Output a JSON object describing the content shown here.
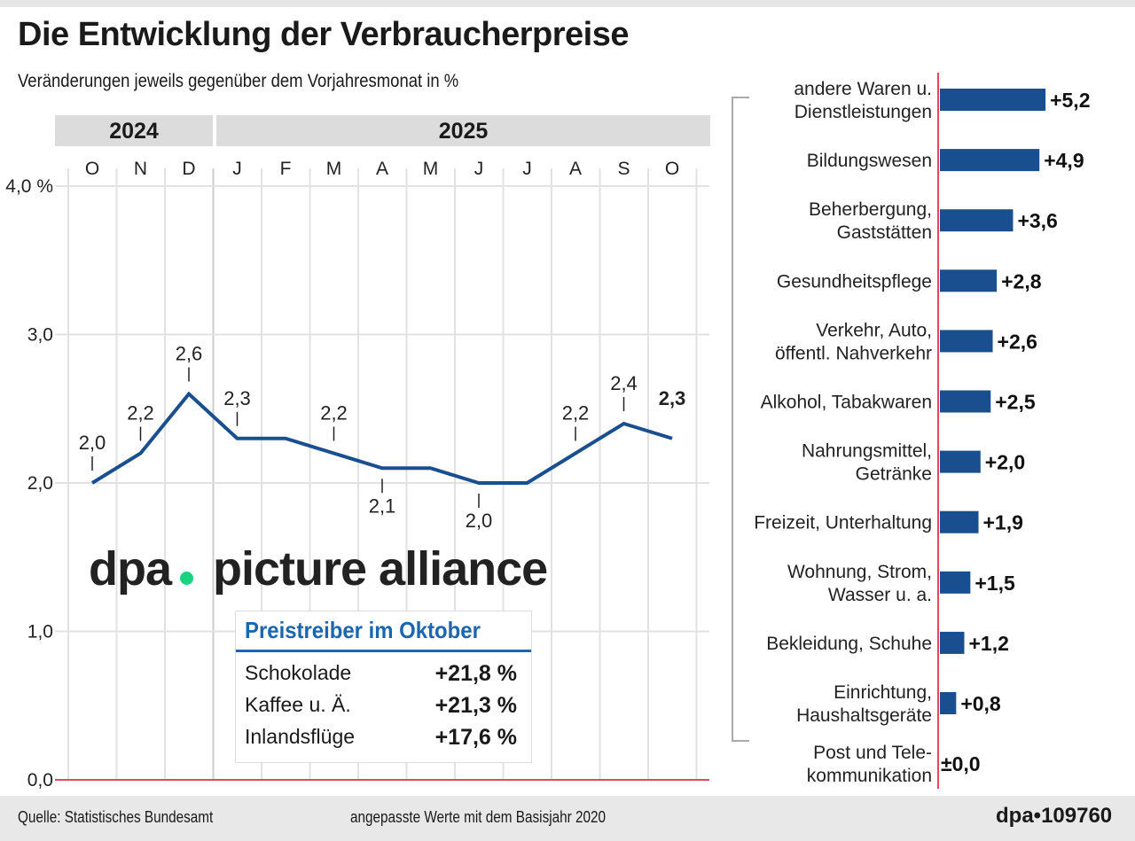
{
  "title": "Die Entwicklung der Verbraucherpreise",
  "subtitle": "Veränderungen jeweils gegenüber dem Vorjahresmonat in %",
  "years": [
    "2024",
    "2025"
  ],
  "chart_data": [
    {
      "type": "line",
      "categories": [
        "O",
        "N",
        "D",
        "J",
        "F",
        "M",
        "A",
        "M",
        "J",
        "J",
        "A",
        "S",
        "O"
      ],
      "values": [
        2.0,
        2.2,
        2.6,
        2.3,
        2.3,
        2.2,
        2.1,
        2.1,
        2.0,
        2.0,
        2.2,
        2.4,
        2.3
      ],
      "data_labels": [
        "2,0",
        "2,2",
        "2,6",
        "2,3",
        "",
        "2,2",
        "2,1",
        "",
        "2,0",
        "",
        "2,2",
        "2,4",
        "2,3"
      ],
      "yticks": [
        "0,0",
        "1,0",
        "2,0",
        "3,0",
        "4,0 %"
      ],
      "ylim": [
        0,
        4
      ],
      "grid": true,
      "color": "#1a4f8f"
    },
    {
      "type": "bar",
      "orientation": "horizontal",
      "categories": [
        [
          "andere Waren u.",
          "Dienstleistungen"
        ],
        [
          "Bildungswesen"
        ],
        [
          "Beherbergung,",
          "Gaststätten"
        ],
        [
          "Gesundheitspflege"
        ],
        [
          "Verkehr, Auto,",
          "öffentl. Nahverkehr"
        ],
        [
          "Alkohol, Tabakwaren"
        ],
        [
          "Nahrungsmittel,",
          "Getränke"
        ],
        [
          "Freizeit, Unterhaltung"
        ],
        [
          "Wohnung, Strom,",
          "Wasser u. a."
        ],
        [
          "Bekleidung, Schuhe"
        ],
        [
          "Einrichtung,",
          "Haushaltsgeräte"
        ],
        [
          "Post und Tele-",
          "kommunikation"
        ]
      ],
      "values": [
        5.2,
        4.9,
        3.6,
        2.8,
        2.6,
        2.5,
        2.0,
        1.9,
        1.5,
        1.2,
        0.8,
        0.0
      ],
      "data_labels": [
        "+5,2",
        "+4,9",
        "+3,6",
        "+2,8",
        "+2,6",
        "+2,5",
        "+2,0",
        "+1,9",
        "+1,5",
        "+1,2",
        "+0,8",
        "±0,0"
      ],
      "color": "#1a4f8f"
    }
  ],
  "drivers": {
    "title": "Preistreiber im Oktober",
    "rows": [
      [
        "Schokolade",
        "+21,8 %"
      ],
      [
        "Kaffee u. Ä.",
        "+21,3 %"
      ],
      [
        "Inlandsflüge",
        "+17,6 %"
      ]
    ]
  },
  "footer": {
    "source": "Quelle: Statistisches Bundesamt",
    "note": "angepasste Werte mit dem Basisjahr 2020",
    "id": "dpa•109760"
  },
  "watermark": "dpa picture alliance"
}
